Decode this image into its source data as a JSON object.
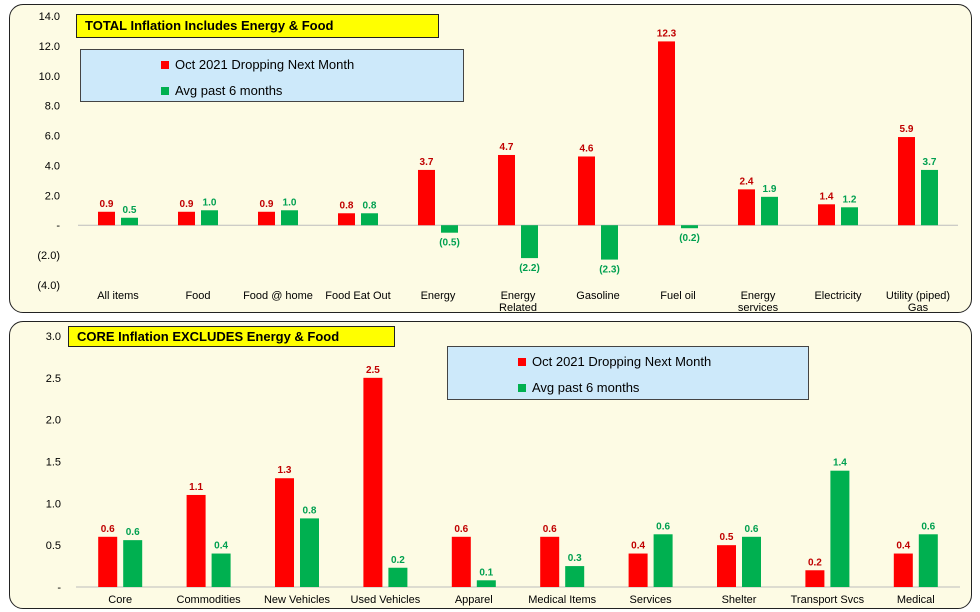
{
  "colors": {
    "series1": "#ff0000",
    "series2": "#00b050",
    "label1": "#c00000",
    "label2": "#00a050",
    "panel_bg": "#fdfbe4",
    "title_bg": "#ffff00",
    "legend_bg": "#cde9fa"
  },
  "chart_data": [
    {
      "type": "bar",
      "title": "TOTAL Inflation Includes Energy & Food",
      "categories": [
        [
          "All items"
        ],
        [
          "Food"
        ],
        [
          "Food @ home"
        ],
        [
          "Food Eat Out"
        ],
        [
          "Energy"
        ],
        [
          "Energy",
          "Related"
        ],
        [
          "Gasoline"
        ],
        [
          "Fuel oil"
        ],
        [
          "Energy",
          "services"
        ],
        [
          "Electricity"
        ],
        [
          "Utility (piped)",
          "Gas"
        ]
      ],
      "series": [
        {
          "name": "Oct 2021 Dropping Next Month",
          "values": [
            0.9,
            0.9,
            0.9,
            0.8,
            3.7,
            4.7,
            4.6,
            12.3,
            2.4,
            1.4,
            5.9
          ],
          "labels": [
            "0.9",
            "0.9",
            "0.9",
            "0.8",
            "3.7",
            "4.7",
            "4.6",
            "12.3",
            "2.4",
            "1.4",
            "5.9"
          ]
        },
        {
          "name": "Avg past 6 months",
          "values": [
            0.5,
            1.0,
            1.0,
            0.8,
            -0.5,
            -2.2,
            -2.3,
            -0.2,
            1.9,
            1.2,
            3.7
          ],
          "labels": [
            "0.5",
            "1.0",
            "1.0",
            "0.8",
            "(0.5)",
            "(2.2)",
            "(2.3)",
            "(0.2)",
            "1.9",
            "1.2",
            "3.7"
          ]
        }
      ],
      "ylim": [
        -4,
        14
      ],
      "yticks": [
        14,
        12,
        10,
        8,
        6,
        4,
        2,
        0,
        -2,
        -4
      ],
      "ytick_labels": [
        "14.0",
        "12.0",
        "10.0",
        "8.0",
        "6.0",
        "4.0",
        "2.0",
        "-",
        "(2.0)",
        "(4.0)"
      ],
      "legend_position": "top-left",
      "grid": false
    },
    {
      "type": "bar",
      "title": "CORE Inflation EXCLUDES  Energy & Food",
      "categories": [
        [
          "Core"
        ],
        [
          "Commodities"
        ],
        [
          "New Vehicles"
        ],
        [
          "Used Vehicles"
        ],
        [
          "Apparel"
        ],
        [
          "Medical Items"
        ],
        [
          "Services"
        ],
        [
          "Shelter"
        ],
        [
          "Transport Svcs"
        ],
        [
          "Medical"
        ]
      ],
      "series": [
        {
          "name": "Oct 2021 Dropping Next Month",
          "values": [
            0.6,
            1.1,
            1.3,
            2.5,
            0.6,
            0.6,
            0.4,
            0.5,
            0.2,
            0.4
          ],
          "labels": [
            "0.6",
            "1.1",
            "1.3",
            "2.5",
            "0.6",
            "0.6",
            "0.4",
            "0.5",
            "0.2",
            "0.4"
          ]
        },
        {
          "name": "Avg past 6 months",
          "values": [
            0.56,
            0.4,
            0.82,
            0.23,
            0.08,
            0.25,
            0.63,
            0.6,
            1.39,
            0.63
          ],
          "labels": [
            "0.6",
            "0.4",
            "0.8",
            "0.2",
            "0.1",
            "0.3",
            "0.6",
            "0.6",
            "1.4",
            "0.6"
          ]
        }
      ],
      "ylim": [
        0,
        3
      ],
      "yticks": [
        3,
        2.5,
        2,
        1.5,
        1,
        0.5,
        0
      ],
      "ytick_labels": [
        "3.0",
        "2.5",
        "2.0",
        "1.5",
        "1.0",
        "0.5",
        "-"
      ],
      "legend_position": "top-center",
      "grid": false
    }
  ]
}
